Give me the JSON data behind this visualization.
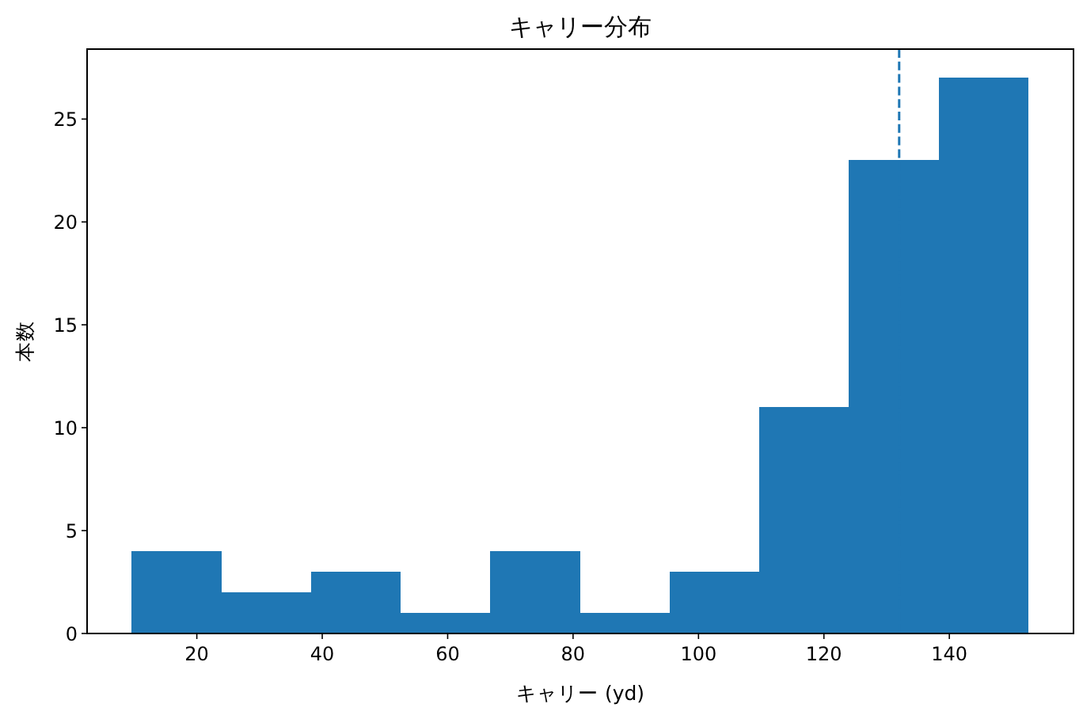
{
  "chart_data": {
    "type": "histogram",
    "title": "キャリー分布",
    "xlabel": "キャリー (yd)",
    "ylabel": "本数",
    "bins": [
      9.6,
      23.9,
      38.2,
      52.5,
      66.8,
      81.1,
      95.4,
      109.7,
      124.0,
      138.3,
      152.6
    ],
    "values": [
      4,
      2,
      3,
      1,
      4,
      1,
      3,
      11,
      23,
      27
    ],
    "color": "#1f77b4",
    "xlim": [
      2.5,
      159.8
    ],
    "ylim": [
      0,
      28.4
    ],
    "xticks": [
      20,
      40,
      60,
      80,
      100,
      120,
      140
    ],
    "yticks": [
      0,
      5,
      10,
      15,
      20,
      25
    ],
    "ref_lines": [
      {
        "axis": "x",
        "value": 132,
        "color": "#1f77b4",
        "line_style": "dashed"
      }
    ]
  }
}
